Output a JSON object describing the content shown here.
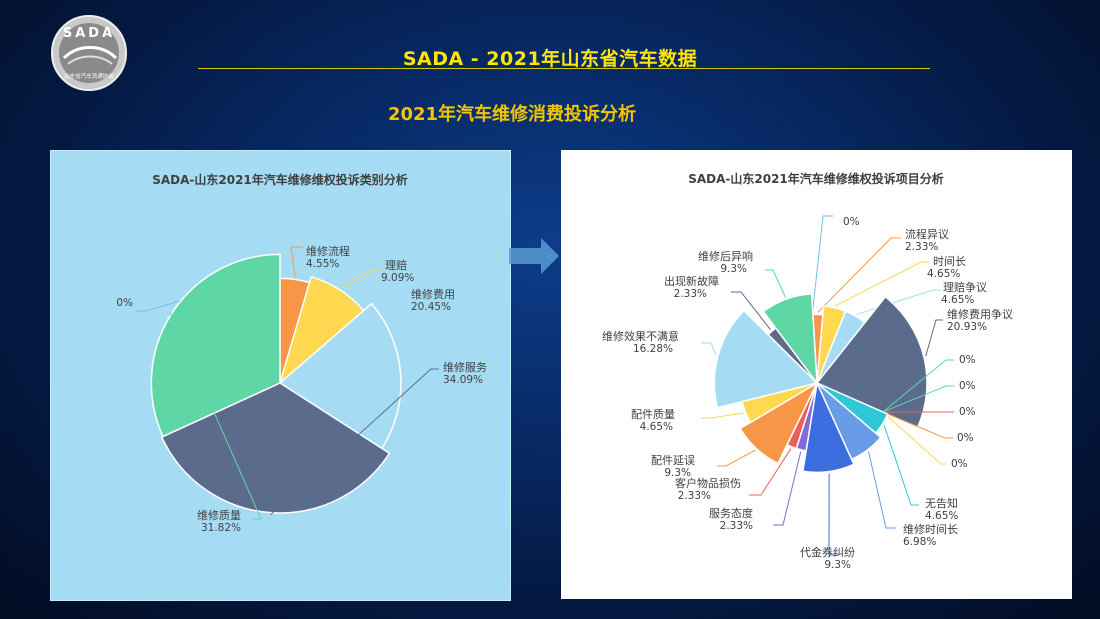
{
  "header": {
    "logo_text": "SADA",
    "logo_subtext": "山东省汽车流通协会",
    "main_title": "SADA -  2021年山东省汽车数据",
    "sub_title": "2021年汽车维修消费投诉分析"
  },
  "colors": {
    "title": "#ffe600",
    "subtitle": "#f2c400",
    "left_panel_bg": "#a5dcf4",
    "right_panel_bg": "#ffffff",
    "arrow": "#5b9bd5"
  },
  "chart_data": [
    {
      "type": "pie",
      "variant": "rose",
      "title": "SADA-山东2021年汽车维修维权投诉类别分析",
      "slices": [
        {
          "name": "维修流程",
          "value": 4.55,
          "label": "4.55%",
          "color": "#f79646"
        },
        {
          "name": "理赔",
          "value": 9.09,
          "label": "9.09%",
          "color": "#ffd84f"
        },
        {
          "name": "维修费用",
          "value": 20.45,
          "label": "20.45%",
          "color": "#a5dcf4"
        },
        {
          "name": "维修服务",
          "value": 34.09,
          "label": "34.09%",
          "color": "#5b6b8c"
        },
        {
          "name": "维修质量",
          "value": 31.82,
          "label": "31.82%",
          "color": "#5ed6a6"
        },
        {
          "name": "",
          "value": 0,
          "label": "0%",
          "color": "#73c0de"
        }
      ]
    },
    {
      "type": "pie",
      "variant": "rose",
      "title": "SADA-山东2021年汽车维修维权投诉项目分析",
      "slices": [
        {
          "name": "",
          "value": 0,
          "label": "0%",
          "color": "#73c0de"
        },
        {
          "name": "流程异议",
          "value": 2.33,
          "label": "2.33%",
          "color": "#f79646"
        },
        {
          "name": "时间长",
          "value": 4.65,
          "label": "4.65%",
          "color": "#ffd84f"
        },
        {
          "name": "理赔争议",
          "value": 4.65,
          "label": "4.65%",
          "color": "#a5dcf4"
        },
        {
          "name": "维修费用争议",
          "value": 20.93,
          "label": "20.93%",
          "color": "#5b6b8c"
        },
        {
          "name": "",
          "value": 0,
          "label": "0%",
          "color": "#5ed6a6"
        },
        {
          "name": "",
          "value": 0,
          "label": "0%",
          "color": "#5ed6a6"
        },
        {
          "name": "",
          "value": 0,
          "label": "0%",
          "color": "#e8605c"
        },
        {
          "name": "",
          "value": 0,
          "label": "0%",
          "color": "#f79646"
        },
        {
          "name": "",
          "value": 0,
          "label": "0%",
          "color": "#ffd84f"
        },
        {
          "name": "无告知",
          "value": 4.65,
          "label": "4.65%",
          "color": "#2ec7d6"
        },
        {
          "name": "维修时间长",
          "value": 6.98,
          "label": "6.98%",
          "color": "#6a9be8"
        },
        {
          "name": "代金券纠纷",
          "value": 9.3,
          "label": "9.3%",
          "color": "#3d6ee0"
        },
        {
          "name": "服务态度",
          "value": 2.33,
          "label": "2.33%",
          "color": "#7f6ad8"
        },
        {
          "name": "客户物品损伤",
          "value": 2.33,
          "label": "2.33%",
          "color": "#e8605c"
        },
        {
          "name": "配件延误",
          "value": 9.3,
          "label": "9.3%",
          "color": "#f79646"
        },
        {
          "name": "配件质量",
          "value": 4.65,
          "label": "4.65%",
          "color": "#ffd84f"
        },
        {
          "name": "维修效果不满意",
          "value": 16.28,
          "label": "16.28%",
          "color": "#a5dcf4"
        },
        {
          "name": "出现新故障",
          "value": 2.33,
          "label": "2.33%",
          "color": "#5b6b8c"
        },
        {
          "name": "维修后异响",
          "value": 9.3,
          "label": "9.3%",
          "color": "#5ed6a6"
        }
      ]
    }
  ]
}
